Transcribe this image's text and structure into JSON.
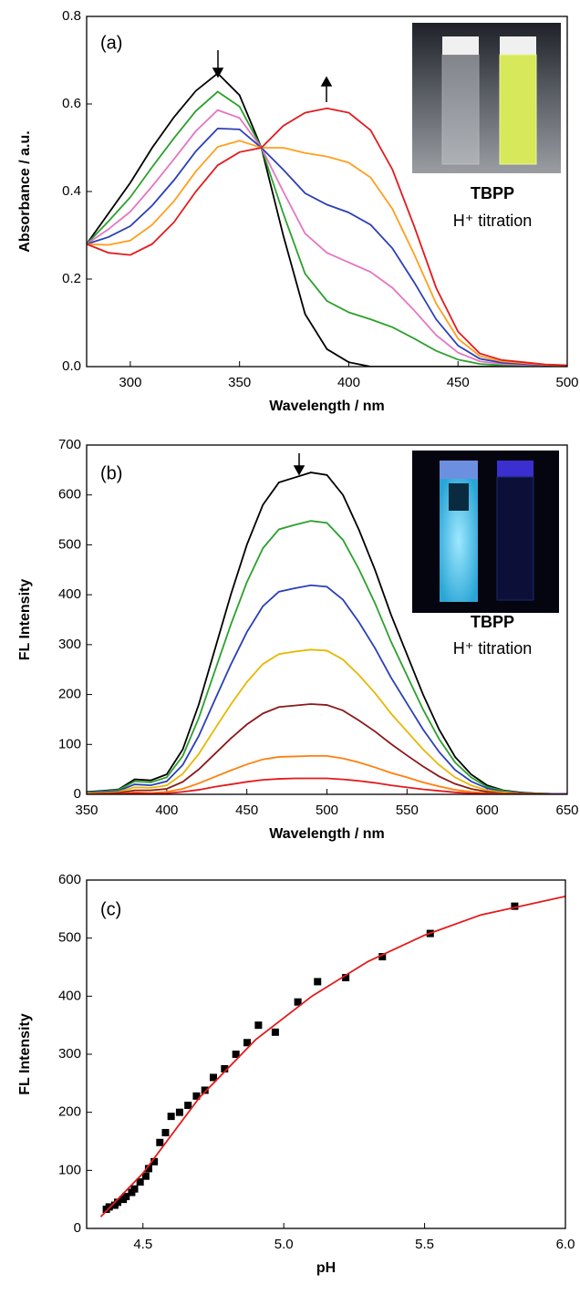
{
  "chart_data": [
    {
      "type": "line",
      "panel_label": "(a)",
      "inset_title": "TBPP",
      "inset_subtitle": "H⁺ titration",
      "x_label": "Wavelength / nm",
      "y_label": "Absorbance / a.u.",
      "xlim": [
        280,
        500
      ],
      "ylim": [
        0,
        0.8
      ],
      "xticks": [
        300,
        350,
        400,
        450,
        500
      ],
      "yticks": [
        {
          "value": 0,
          "label": "0.0"
        },
        0.2,
        0.4,
        0.6,
        0.8
      ],
      "x": [
        280,
        290,
        300,
        310,
        320,
        330,
        340,
        350,
        360,
        370,
        380,
        390,
        400,
        410,
        420,
        430,
        440,
        450,
        460,
        470,
        480,
        490,
        500
      ],
      "series": [
        {
          "color": "#000000",
          "values": [
            0.28,
            0.35,
            0.42,
            0.5,
            0.57,
            0.63,
            0.67,
            0.62,
            0.5,
            0.3,
            0.12,
            0.04,
            0.01,
            0,
            0,
            0,
            0,
            0,
            0,
            0,
            0,
            0,
            0
          ]
        },
        {
          "color": "#2ca02c",
          "values": [
            0.28,
            0.332,
            0.387,
            0.456,
            0.522,
            0.584,
            0.628,
            0.594,
            0.5,
            0.35,
            0.212,
            0.15,
            0.124,
            0.108,
            0.09,
            0.064,
            0.036,
            0.016,
            0.006,
            0.003,
            0.002,
            0.001,
            0.001
          ]
        },
        {
          "color": "#e377c2",
          "values": [
            0.28,
            0.314,
            0.354,
            0.412,
            0.474,
            0.538,
            0.586,
            0.568,
            0.5,
            0.4,
            0.304,
            0.26,
            0.238,
            0.216,
            0.18,
            0.128,
            0.072,
            0.032,
            0.012,
            0.006,
            0.004,
            0.002,
            0.001
          ]
        },
        {
          "color": "#2b3fb8",
          "values": [
            0.28,
            0.296,
            0.321,
            0.368,
            0.426,
            0.492,
            0.544,
            0.542,
            0.5,
            0.45,
            0.396,
            0.37,
            0.352,
            0.324,
            0.27,
            0.192,
            0.108,
            0.048,
            0.018,
            0.009,
            0.006,
            0.003,
            0.002
          ]
        },
        {
          "color": "#ff9f1c",
          "values": [
            0.28,
            0.278,
            0.288,
            0.324,
            0.378,
            0.446,
            0.502,
            0.516,
            0.5,
            0.5,
            0.488,
            0.48,
            0.466,
            0.432,
            0.36,
            0.256,
            0.144,
            0.064,
            0.024,
            0.012,
            0.008,
            0.004,
            0.002
          ]
        },
        {
          "color": "#e31a1c",
          "values": [
            0.28,
            0.26,
            0.255,
            0.28,
            0.33,
            0.4,
            0.46,
            0.49,
            0.5,
            0.55,
            0.58,
            0.59,
            0.58,
            0.54,
            0.45,
            0.32,
            0.18,
            0.08,
            0.03,
            0.015,
            0.01,
            0.005,
            0.003
          ]
        }
      ]
    },
    {
      "type": "line",
      "panel_label": "(b)",
      "inset_title": "TBPP",
      "inset_subtitle": "H⁺ titration",
      "x_label": "Wavelength / nm",
      "y_label": "FL Intensity",
      "xlim": [
        350,
        650
      ],
      "ylim": [
        0,
        700
      ],
      "xticks": [
        350,
        400,
        450,
        500,
        550,
        600,
        650
      ],
      "yticks": [
        0,
        100,
        200,
        300,
        400,
        500,
        600,
        700
      ],
      "x": [
        350,
        360,
        370,
        380,
        390,
        400,
        410,
        420,
        430,
        440,
        450,
        460,
        470,
        480,
        490,
        500,
        510,
        520,
        530,
        540,
        550,
        560,
        570,
        580,
        590,
        600,
        610,
        620,
        630,
        640,
        650
      ],
      "series": [
        {
          "color": "#000000",
          "values": [
            5,
            7,
            10,
            30,
            28,
            40,
            90,
            180,
            290,
            400,
            500,
            580,
            625,
            635,
            645,
            640,
            600,
            530,
            450,
            360,
            280,
            200,
            130,
            75,
            40,
            18,
            8,
            4,
            2,
            1,
            1
          ]
        },
        {
          "color": "#2ca02c",
          "values": [
            4,
            6,
            9,
            26,
            24,
            34,
            77,
            153,
            247,
            340,
            425,
            493,
            531,
            540,
            548,
            544,
            510,
            451,
            383,
            306,
            238,
            170,
            111,
            64,
            34,
            15,
            7,
            3,
            2,
            1,
            1
          ]
        },
        {
          "color": "#2b3fb8",
          "values": [
            3,
            5,
            7,
            20,
            18,
            26,
            59,
            117,
            189,
            260,
            325,
            377,
            406,
            413,
            419,
            416,
            390,
            345,
            293,
            234,
            182,
            130,
            85,
            49,
            26,
            12,
            5,
            3,
            1,
            1,
            1
          ]
        },
        {
          "color": "#e6b800",
          "values": [
            2,
            3,
            5,
            14,
            13,
            18,
            41,
            81,
            131,
            180,
            225,
            261,
            281,
            286,
            290,
            288,
            270,
            239,
            203,
            162,
            126,
            90,
            59,
            34,
            18,
            8,
            4,
            2,
            1,
            0,
            0
          ]
        },
        {
          "color": "#8b1a1a",
          "values": [
            1,
            2,
            3,
            8,
            8,
            11,
            25,
            50,
            81,
            112,
            140,
            162,
            175,
            178,
            181,
            179,
            168,
            148,
            126,
            101,
            78,
            56,
            36,
            21,
            11,
            5,
            2,
            1,
            1,
            0,
            0
          ]
        },
        {
          "color": "#ff7f0e",
          "values": [
            1,
            1,
            1,
            4,
            3,
            5,
            11,
            22,
            35,
            48,
            60,
            70,
            75,
            76,
            77,
            77,
            72,
            64,
            54,
            43,
            34,
            24,
            16,
            9,
            5,
            2,
            1,
            0,
            0,
            0,
            0
          ]
        },
        {
          "color": "#e31a1c",
          "values": [
            0,
            0,
            1,
            2,
            1,
            2,
            5,
            9,
            15,
            20,
            25,
            29,
            31,
            32,
            32,
            32,
            30,
            27,
            23,
            18,
            14,
            10,
            7,
            4,
            2,
            1,
            0,
            0,
            0,
            0,
            0
          ]
        }
      ]
    },
    {
      "type": "scatter",
      "panel_label": "(c)",
      "x_label": "pH",
      "y_label": "FL Intensity",
      "xlim": [
        4.3,
        6.0
      ],
      "ylim": [
        0,
        600
      ],
      "xticks": [
        4.5,
        {
          "value": 5,
          "label": "5.0"
        },
        5.5,
        {
          "value": 6,
          "label": "6.0"
        }
      ],
      "yticks": [
        0,
        100,
        200,
        300,
        400,
        500,
        600
      ],
      "series": [
        {
          "color": "#000000",
          "style": "markers",
          "x": [
            4.37,
            4.38,
            4.4,
            4.41,
            4.43,
            4.44,
            4.46,
            4.47,
            4.49,
            4.51,
            4.52,
            4.54,
            4.56,
            4.58,
            4.6,
            4.63,
            4.66,
            4.69,
            4.72,
            4.75,
            4.79,
            4.83,
            4.87,
            4.91,
            4.97,
            5.05,
            5.12,
            5.22,
            5.35,
            5.52,
            5.82
          ],
          "values": [
            33,
            37,
            40,
            45,
            50,
            55,
            62,
            68,
            80,
            90,
            103,
            115,
            148,
            165,
            193,
            200,
            212,
            228,
            238,
            260,
            275,
            300,
            320,
            350,
            338,
            390,
            425,
            432,
            468,
            508,
            555
          ]
        },
        {
          "color": "#e31a1c",
          "style": "line",
          "x": [
            4.35,
            4.5,
            4.7,
            4.9,
            5.1,
            5.3,
            5.5,
            5.7,
            6.0
          ],
          "values": [
            20,
            95,
            225,
            325,
            400,
            460,
            505,
            540,
            572
          ]
        }
      ]
    }
  ]
}
